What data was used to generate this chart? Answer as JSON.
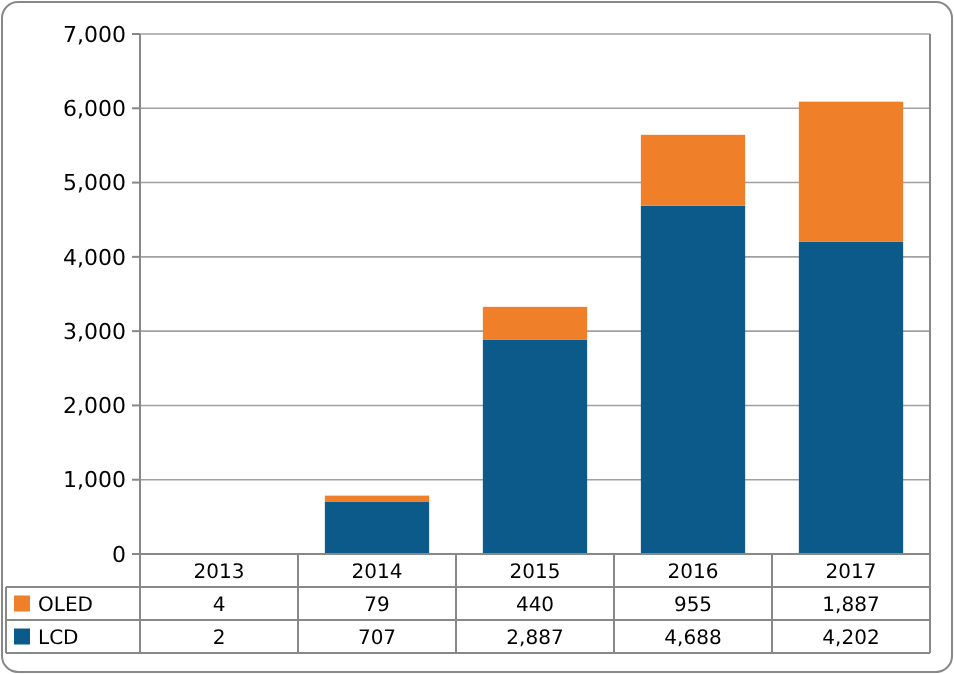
{
  "chart_data": {
    "type": "bar",
    "stacked": true,
    "categories": [
      "2013",
      "2014",
      "2015",
      "2016",
      "2017"
    ],
    "series": [
      {
        "name": "LCD",
        "color": "#0b5a8a",
        "values": [
          2,
          707,
          2887,
          4688,
          4202
        ],
        "value_labels": [
          "2",
          "707",
          "2,887",
          "4,688",
          "4,202"
        ]
      },
      {
        "name": "OLED",
        "color": "#f07f2a",
        "values": [
          4,
          79,
          440,
          955,
          1887
        ],
        "value_labels": [
          "4",
          "79",
          "440",
          "955",
          "1,887"
        ]
      }
    ],
    "ylim": [
      0,
      7000
    ],
    "yticks": [
      0,
      {
        "value": 1000,
        "label": "1,000"
      },
      {
        "value": 2000,
        "label": "2,000"
      },
      {
        "value": 3000,
        "label": "3,000"
      },
      {
        "value": 4000,
        "label": "4,000"
      },
      {
        "value": 5000,
        "label": "5,000"
      },
      {
        "value": 6000,
        "label": "6,000"
      },
      {
        "value": 7000,
        "label": "7,000"
      }
    ],
    "grid": "y",
    "legend": "bottom"
  }
}
